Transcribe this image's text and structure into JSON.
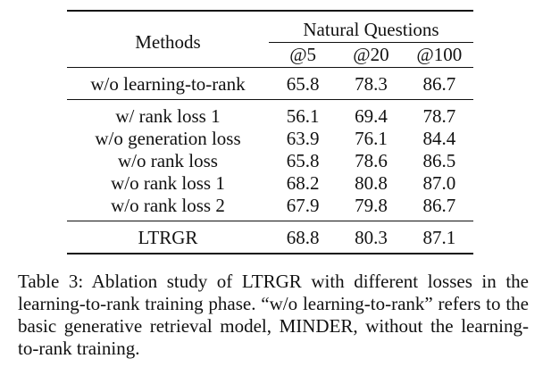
{
  "table": {
    "header": {
      "methods_label": "Methods",
      "group_label": "Natural Questions",
      "metrics": [
        "@5",
        "@20",
        "@100"
      ]
    },
    "baseline": {
      "method": "w/o learning-to-rank",
      "values": [
        "65.8",
        "78.3",
        "86.7"
      ]
    },
    "ablations": [
      {
        "method": "w/ rank loss 1",
        "values": [
          "56.1",
          "69.4",
          "78.7"
        ]
      },
      {
        "method": "w/o generation loss",
        "values": [
          "63.9",
          "76.1",
          "84.4"
        ]
      },
      {
        "method": "w/o rank loss",
        "values": [
          "65.8",
          "78.6",
          "86.5"
        ]
      },
      {
        "method": "w/o rank loss 1",
        "values": [
          "68.2",
          "80.8",
          "87.0"
        ]
      },
      {
        "method": "w/o rank loss 2",
        "values": [
          "67.9",
          "79.8",
          "86.7"
        ]
      }
    ],
    "final": {
      "method": "LTRGR",
      "values": [
        "68.8",
        "80.3",
        "87.1"
      ]
    }
  },
  "caption": "Table 3: Ablation study of LTRGR with different losses in the learning-to-rank training phase. “w/o learning-to-rank” refers to the basic generative retrieval model, MINDER, without the learning-to-rank training."
}
